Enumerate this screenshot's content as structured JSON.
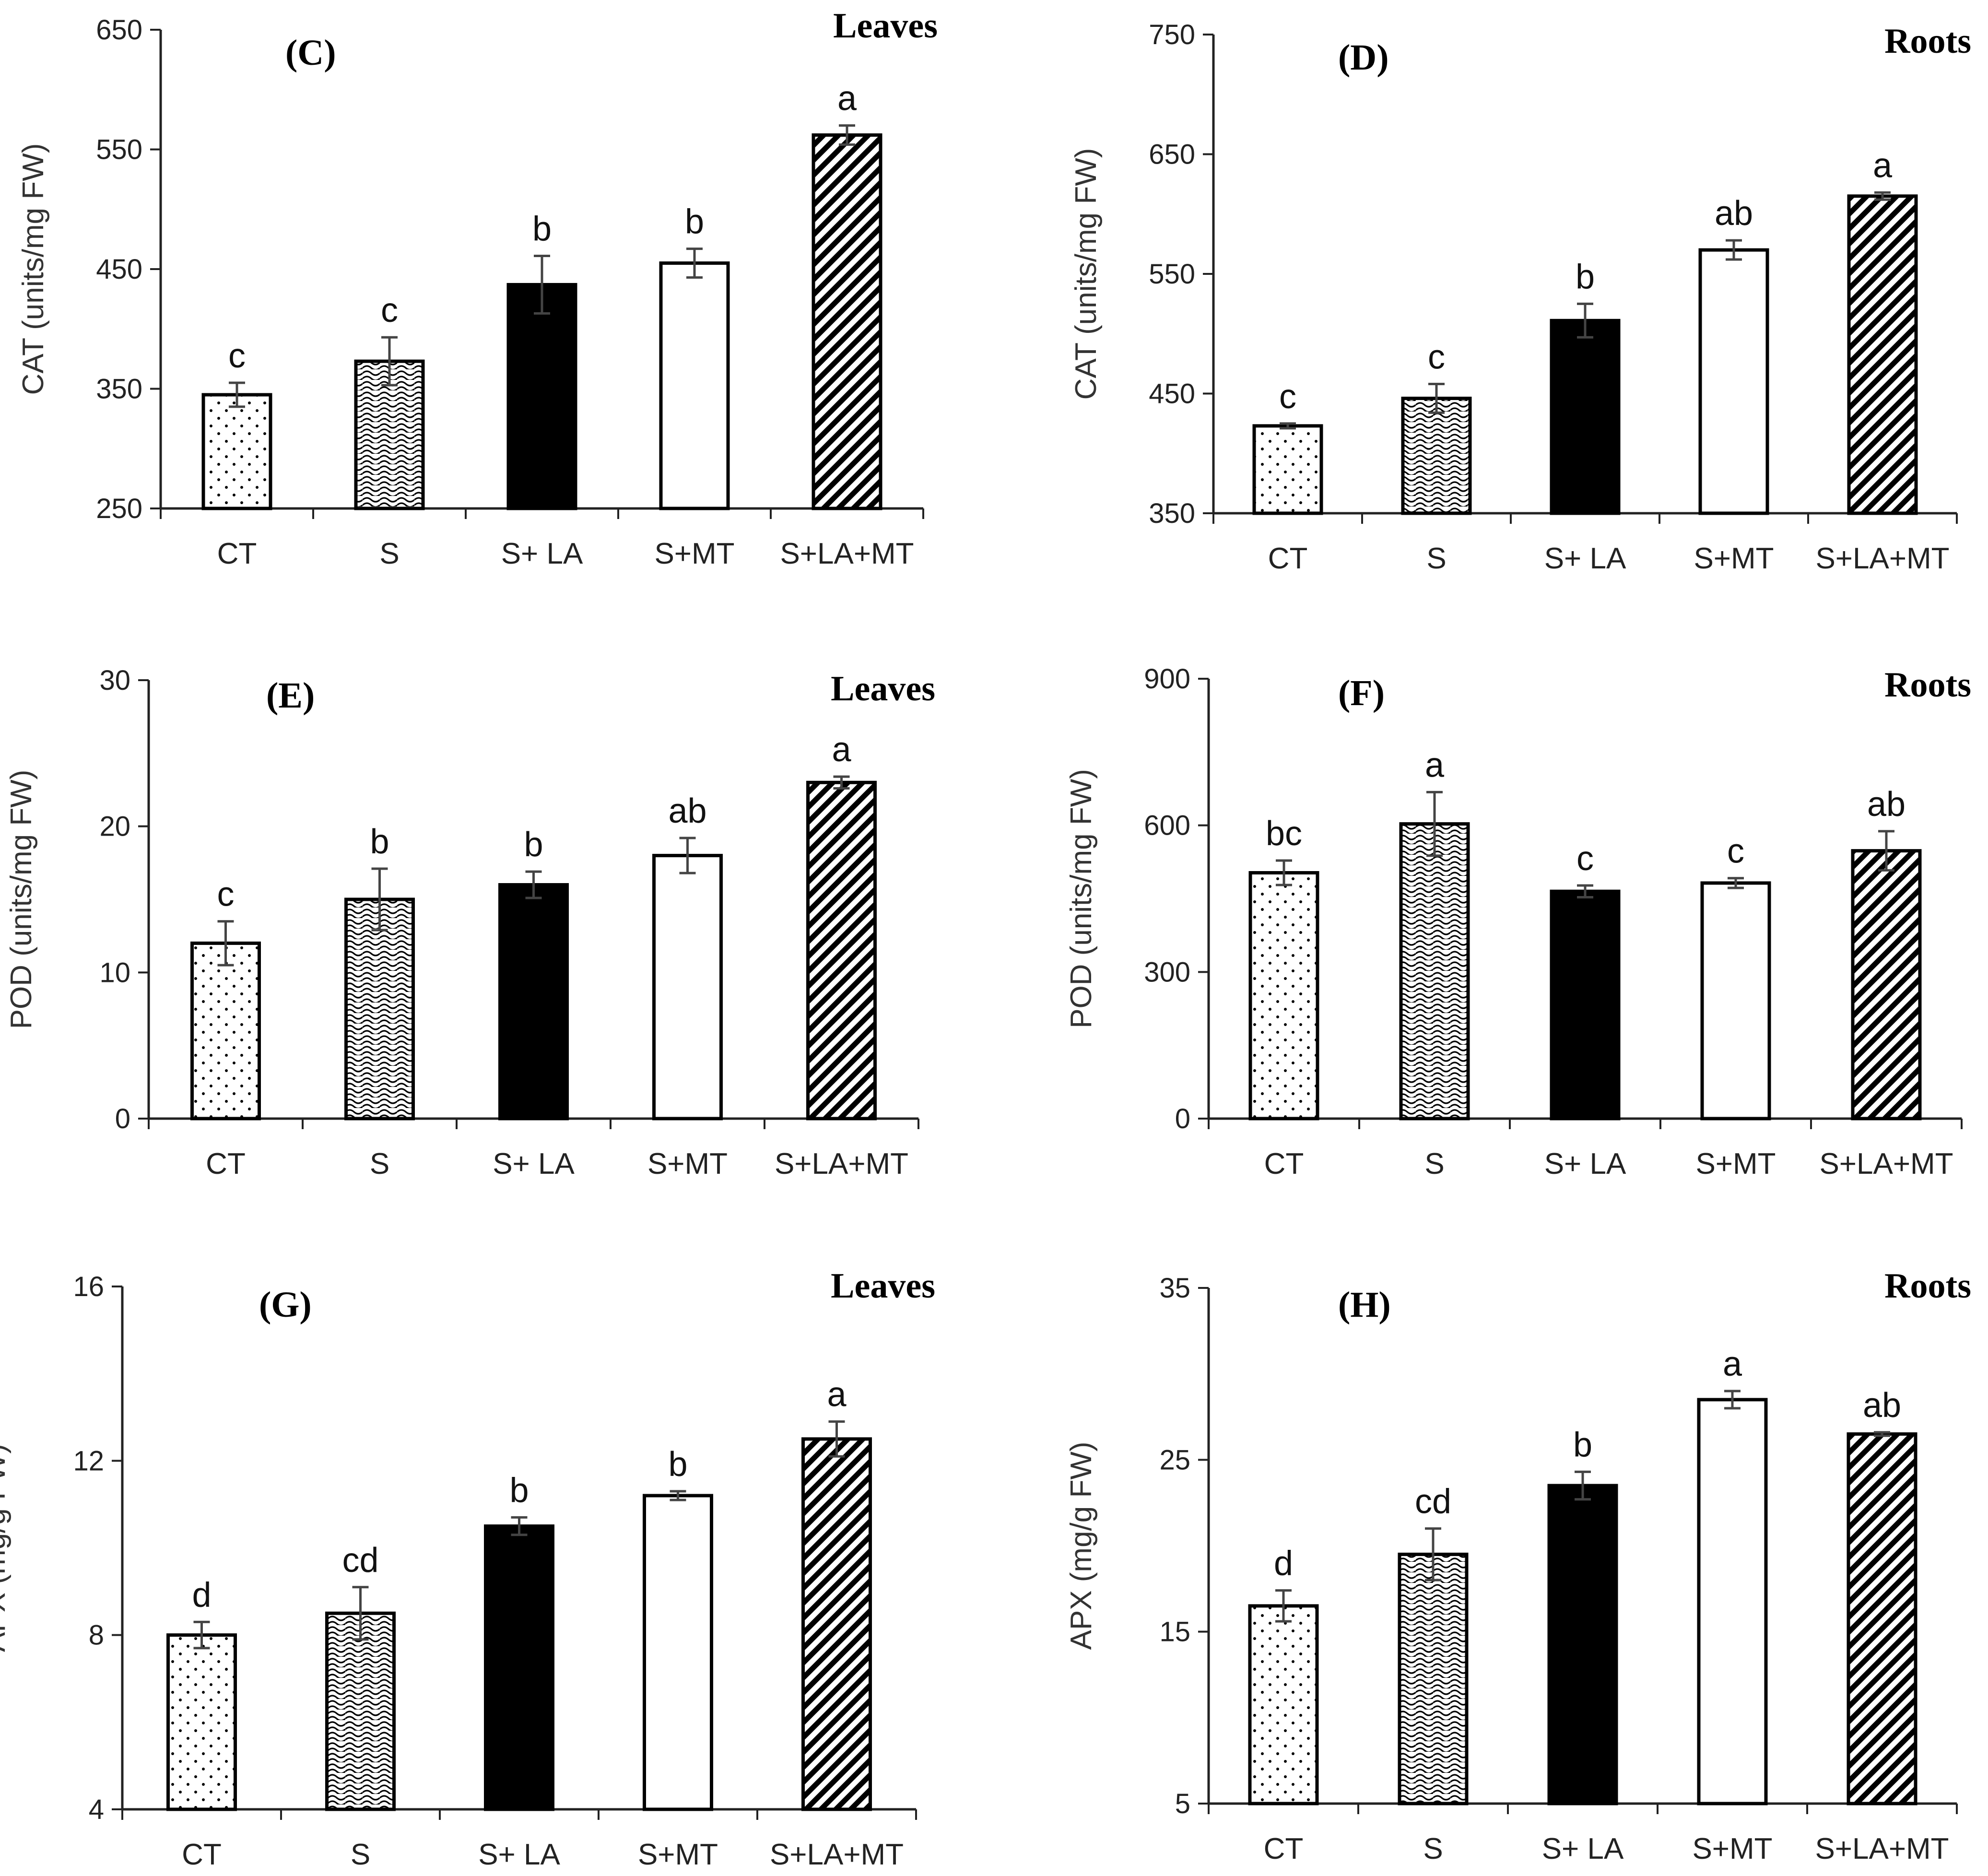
{
  "chart_data": [
    {
      "type": "bar",
      "panel": "(C)",
      "tissue": "Leaves",
      "ylabel": "CAT (units/mg FW)",
      "ylim": [
        250,
        650
      ],
      "yticks": [
        250,
        350,
        450,
        550,
        650
      ],
      "categories": [
        "CT",
        "S",
        "S+ LA",
        "S+MT",
        "S+LA+MT"
      ],
      "values": [
        345,
        373,
        437,
        455,
        562
      ],
      "errors": [
        10,
        20,
        24,
        12,
        8
      ],
      "letters": [
        "c",
        "c",
        "b",
        "b",
        "a"
      ]
    },
    {
      "type": "bar",
      "panel": "(D)",
      "tissue": "Roots",
      "ylabel": "CAT (units/mg FW)",
      "ylim": [
        350,
        750
      ],
      "yticks": [
        350,
        450,
        550,
        650,
        750
      ],
      "categories": [
        "CT",
        "S",
        "S+ LA",
        "S+MT",
        "S+LA+MT"
      ],
      "values": [
        423,
        446,
        511,
        570,
        615
      ],
      "errors": [
        2,
        12,
        14,
        8,
        3
      ],
      "letters": [
        "c",
        "c",
        "b",
        "ab",
        "a"
      ]
    },
    {
      "type": "bar",
      "panel": "(E)",
      "tissue": "Leaves",
      "ylabel": "POD (units/mg FW)",
      "ylim": [
        0,
        30
      ],
      "yticks": [
        0,
        10,
        20,
        30
      ],
      "categories": [
        "CT",
        "S",
        "S+ LA",
        "S+MT",
        "S+LA+MT"
      ],
      "values": [
        12,
        15,
        16,
        18,
        23
      ],
      "errors": [
        1.5,
        2.1,
        0.9,
        1.2,
        0.4
      ],
      "letters": [
        "c",
        "b",
        "b",
        "ab",
        "a"
      ]
    },
    {
      "type": "bar",
      "panel": "(F)",
      "tissue": "Roots",
      "ylabel": "POD (units/mg FW)",
      "ylim": [
        0,
        900
      ],
      "yticks": [
        0,
        300,
        600,
        900
      ],
      "categories": [
        "CT",
        "S",
        "S+ LA",
        "S+MT",
        "S+LA+MT"
      ],
      "values": [
        503,
        603,
        465,
        482,
        548
      ],
      "errors": [
        25,
        65,
        12,
        10,
        40
      ],
      "letters": [
        "bc",
        "a",
        "c",
        "c",
        "ab"
      ]
    },
    {
      "type": "bar",
      "panel": "(G)",
      "tissue": "Leaves",
      "ylabel": "APX (mg/g FW)",
      "ylim": [
        4,
        16
      ],
      "yticks": [
        4,
        8,
        12,
        16
      ],
      "categories": [
        "CT",
        "S",
        "S+ LA",
        "S+MT",
        "S+LA+MT"
      ],
      "values": [
        8.0,
        8.5,
        10.5,
        11.2,
        12.5
      ],
      "errors": [
        0.3,
        0.6,
        0.2,
        0.1,
        0.4
      ],
      "letters": [
        "d",
        "cd",
        "b",
        "b",
        "a"
      ]
    },
    {
      "type": "bar",
      "panel": "(H)",
      "tissue": "Roots",
      "ylabel": "APX (mg/g FW)",
      "ylim": [
        5,
        35
      ],
      "yticks": [
        5,
        15,
        25,
        35
      ],
      "categories": [
        "CT",
        "S",
        "S+ LA",
        "S+MT",
        "S+LA+MT"
      ],
      "values": [
        16.5,
        19.5,
        23.5,
        28.5,
        26.5
      ],
      "errors": [
        0.9,
        1.5,
        0.8,
        0.5,
        0.1
      ],
      "letters": [
        "d",
        "cd",
        "b",
        "a",
        "ab"
      ]
    }
  ]
}
